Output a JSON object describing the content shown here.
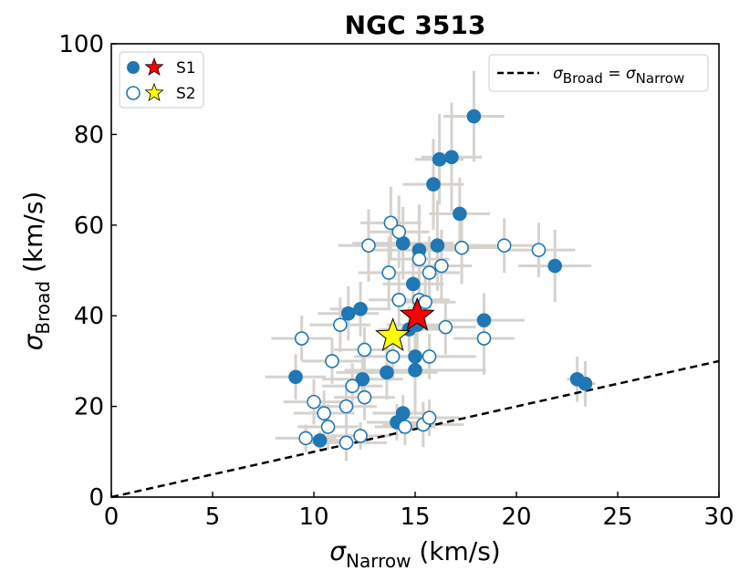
{
  "chart_data": {
    "type": "scatter",
    "title": "NGC 3513",
    "xlabel_sym": "σ",
    "xlabel_sub": "Narrow",
    "xlabel_unit": " (km/s)",
    "ylabel_sym": "σ",
    "ylabel_sub": "Broad",
    "ylabel_unit": " (km/s)",
    "xlim": [
      0,
      30
    ],
    "ylim": [
      0,
      100
    ],
    "xticks": [
      0,
      5,
      10,
      15,
      20,
      25,
      30
    ],
    "yticks": [
      0,
      20,
      40,
      60,
      80,
      100
    ],
    "colors": {
      "point": "#1f77b4",
      "errorbar": "#d6d2ce",
      "s1_star": "#ff0000",
      "s2_star": "#ffff00",
      "line": "#000000"
    },
    "legend_points": {
      "location": "top-left",
      "entries": [
        {
          "label": "S1",
          "marker": "filled-circle+red-star"
        },
        {
          "label": "S2",
          "marker": "open-circle+yellow-star"
        }
      ]
    },
    "legend_line": {
      "location": "top-right",
      "sym": "σ",
      "sub1": "Broad",
      "eq": " = ",
      "sub2": "Narrow"
    },
    "reference_line": {
      "label": "σBroad = σNarrow",
      "slope": 1,
      "style": "dashed"
    },
    "series": [
      {
        "name": "S1",
        "marker": "filled",
        "points": [
          {
            "x": 17.9,
            "y": 84,
            "xerr": 1.5,
            "yerr": 10
          },
          {
            "x": 16.8,
            "y": 75,
            "xerr": 1.5,
            "yerr": 12
          },
          {
            "x": 16.2,
            "y": 74.5,
            "xerr": 1.2,
            "yerr": 10
          },
          {
            "x": 15.9,
            "y": 69,
            "xerr": 1.5,
            "yerr": 10
          },
          {
            "x": 17.2,
            "y": 62.5,
            "xerr": 1.5,
            "yerr": 8
          },
          {
            "x": 14.4,
            "y": 56,
            "xerr": 2.5,
            "yerr": 8
          },
          {
            "x": 15.2,
            "y": 54.5,
            "xerr": 2.5,
            "yerr": 10
          },
          {
            "x": 16.1,
            "y": 55.5,
            "xerr": 2.0,
            "yerr": 10
          },
          {
            "x": 21.9,
            "y": 51,
            "xerr": 1.8,
            "yerr": 8
          },
          {
            "x": 14.9,
            "y": 47,
            "xerr": 1.5,
            "yerr": 8
          },
          {
            "x": 11.7,
            "y": 40.5,
            "xerr": 1.5,
            "yerr": 6
          },
          {
            "x": 12.3,
            "y": 41.5,
            "xerr": 1.5,
            "yerr": 6
          },
          {
            "x": 15.1,
            "y": 38,
            "xerr": 1.5,
            "yerr": 6
          },
          {
            "x": 14.7,
            "y": 37,
            "xerr": 1.5,
            "yerr": 5
          },
          {
            "x": 18.4,
            "y": 39,
            "xerr": 2.0,
            "yerr": 6
          },
          {
            "x": 15.0,
            "y": 31,
            "xerr": 3.0,
            "yerr": 8
          },
          {
            "x": 13.6,
            "y": 27.5,
            "xerr": 2.5,
            "yerr": 6
          },
          {
            "x": 15.0,
            "y": 28,
            "xerr": 3.5,
            "yerr": 10
          },
          {
            "x": 9.1,
            "y": 26.5,
            "xerr": 1.5,
            "yerr": 5
          },
          {
            "x": 12.4,
            "y": 26,
            "xerr": 2.0,
            "yerr": 5
          },
          {
            "x": 23.0,
            "y": 26,
            "xerr": 0.5,
            "yerr": 5
          },
          {
            "x": 23.4,
            "y": 25,
            "xerr": 0.5,
            "yerr": 5
          },
          {
            "x": 14.1,
            "y": 16.5,
            "xerr": 1.5,
            "yerr": 4
          },
          {
            "x": 14.4,
            "y": 18.5,
            "xerr": 1.5,
            "yerr": 4
          },
          {
            "x": 10.3,
            "y": 12.5,
            "xerr": 1.0,
            "yerr": 2
          }
        ]
      },
      {
        "name": "S2",
        "marker": "open",
        "points": [
          {
            "x": 13.8,
            "y": 60.5,
            "xerr": 1.5,
            "yerr": 8
          },
          {
            "x": 14.2,
            "y": 58.5,
            "xerr": 1.5,
            "yerr": 8
          },
          {
            "x": 12.7,
            "y": 55.5,
            "xerr": 1.5,
            "yerr": 8
          },
          {
            "x": 17.3,
            "y": 55,
            "xerr": 2.0,
            "yerr": 8
          },
          {
            "x": 19.4,
            "y": 55.5,
            "xerr": 1.5,
            "yerr": 6
          },
          {
            "x": 21.1,
            "y": 54.5,
            "xerr": 1.8,
            "yerr": 6
          },
          {
            "x": 15.2,
            "y": 52.5,
            "xerr": 1.5,
            "yerr": 8
          },
          {
            "x": 16.3,
            "y": 51,
            "xerr": 1.5,
            "yerr": 8
          },
          {
            "x": 15.7,
            "y": 49.5,
            "xerr": 1.5,
            "yerr": 8
          },
          {
            "x": 13.7,
            "y": 49.5,
            "xerr": 1.5,
            "yerr": 8
          },
          {
            "x": 14.2,
            "y": 43.5,
            "xerr": 1.5,
            "yerr": 6
          },
          {
            "x": 15.2,
            "y": 43.5,
            "xerr": 1.5,
            "yerr": 6
          },
          {
            "x": 15.5,
            "y": 43,
            "xerr": 1.5,
            "yerr": 6
          },
          {
            "x": 11.3,
            "y": 38,
            "xerr": 1.5,
            "yerr": 6
          },
          {
            "x": 16.5,
            "y": 37.5,
            "xerr": 1.5,
            "yerr": 6
          },
          {
            "x": 9.4,
            "y": 35,
            "xerr": 1.5,
            "yerr": 5
          },
          {
            "x": 18.4,
            "y": 35,
            "xerr": 1.5,
            "yerr": 8
          },
          {
            "x": 12.5,
            "y": 32.5,
            "xerr": 1.5,
            "yerr": 5
          },
          {
            "x": 13.9,
            "y": 31,
            "xerr": 1.5,
            "yerr": 5
          },
          {
            "x": 15.7,
            "y": 31,
            "xerr": 1.5,
            "yerr": 5
          },
          {
            "x": 10.9,
            "y": 30,
            "xerr": 1.5,
            "yerr": 5
          },
          {
            "x": 11.9,
            "y": 24.5,
            "xerr": 1.5,
            "yerr": 5
          },
          {
            "x": 12.5,
            "y": 22,
            "xerr": 1.5,
            "yerr": 5
          },
          {
            "x": 10.0,
            "y": 21,
            "xerr": 1.5,
            "yerr": 5
          },
          {
            "x": 11.6,
            "y": 20,
            "xerr": 1.5,
            "yerr": 5
          },
          {
            "x": 10.5,
            "y": 18.5,
            "xerr": 1.5,
            "yerr": 5
          },
          {
            "x": 10.7,
            "y": 15.5,
            "xerr": 1.5,
            "yerr": 5
          },
          {
            "x": 14.5,
            "y": 15.5,
            "xerr": 1.5,
            "yerr": 4
          },
          {
            "x": 15.4,
            "y": 16,
            "xerr": 2.0,
            "yerr": 5
          },
          {
            "x": 15.7,
            "y": 17.5,
            "xerr": 1.5,
            "yerr": 4
          },
          {
            "x": 9.6,
            "y": 13,
            "xerr": 1.5,
            "yerr": 3
          },
          {
            "x": 12.3,
            "y": 13.5,
            "xerr": 1.5,
            "yerr": 3
          },
          {
            "x": 11.6,
            "y": 12,
            "xerr": 2.0,
            "yerr": 4
          }
        ]
      }
    ],
    "stars": [
      {
        "name": "S1",
        "x": 15.1,
        "y": 40
      },
      {
        "name": "S2",
        "x": 13.9,
        "y": 35.5
      }
    ]
  }
}
